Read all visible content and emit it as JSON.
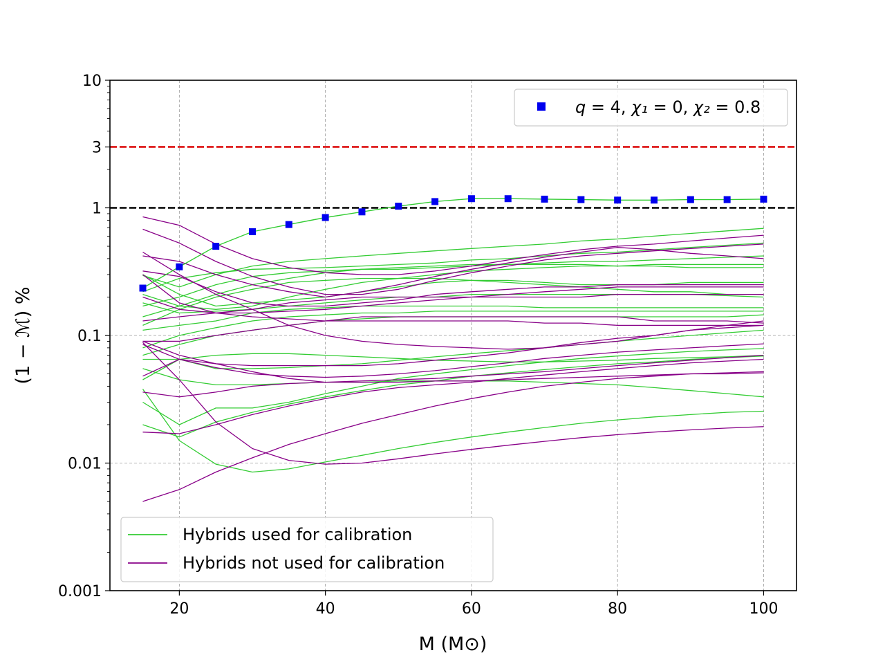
{
  "chart_data": {
    "type": "line",
    "title": "",
    "xlabel": "M (M⊙)",
    "ylabel": "(1 − ℳ) %",
    "xlim": [
      10.5,
      104.5
    ],
    "ylim": [
      0.001,
      10
    ],
    "yscale": "log",
    "grid": true,
    "x_ticks": [
      20,
      40,
      60,
      80,
      100
    ],
    "x_tick_labels": [
      "20",
      "40",
      "60",
      "80",
      "100"
    ],
    "y_ticks": [
      0.001,
      0.01,
      0.1,
      1,
      3,
      10
    ],
    "y_tick_labels": [
      "0.001",
      "0.01",
      "0.1",
      "1",
      "3",
      "10"
    ],
    "x": [
      15,
      20,
      25,
      30,
      35,
      40,
      45,
      50,
      55,
      60,
      65,
      70,
      75,
      80,
      85,
      90,
      95,
      100
    ],
    "reference_lines": [
      {
        "name": "3% threshold",
        "y": 3,
        "color": "#dd1111",
        "style": "dashed"
      },
      {
        "name": "1% threshold",
        "y": 1,
        "color": "#000000",
        "style": "dashed"
      }
    ],
    "highlight": {
      "name": "q = 4, χ₁ = 0, χ₂ = 0.8",
      "label_parts": {
        "q": "q",
        "q_val": " = 4, ",
        "chi1": "χ₁",
        "chi1_val": " = 0, ",
        "chi2": "χ₂",
        "chi2_val": " = 0.8"
      },
      "marker_color": "#0000ee",
      "line_color": "#33cc33",
      "values": [
        0.235,
        0.345,
        0.5,
        0.65,
        0.74,
        0.84,
        0.93,
        1.03,
        1.12,
        1.18,
        1.18,
        1.17,
        1.16,
        1.15,
        1.15,
        1.16,
        1.16,
        1.17
      ]
    },
    "legend_upper": {
      "position": "top-right"
    },
    "legend_lower": {
      "position": "bottom-left",
      "entries": [
        {
          "label": "Hybrids used for calibration",
          "color": "#33cc33"
        },
        {
          "label": "Hybrids not used for calibration",
          "color": "#880088"
        }
      ]
    },
    "series": [
      {
        "name": "calibration-1",
        "group": "calibration",
        "color": "#33cc33",
        "values": [
          0.295,
          0.24,
          0.3,
          0.35,
          0.38,
          0.4,
          0.42,
          0.44,
          0.46,
          0.48,
          0.5,
          0.52,
          0.55,
          0.57,
          0.6,
          0.63,
          0.66,
          0.69
        ]
      },
      {
        "name": "calibration-2",
        "group": "calibration",
        "color": "#33cc33",
        "values": [
          0.22,
          0.28,
          0.31,
          0.33,
          0.335,
          0.34,
          0.35,
          0.36,
          0.37,
          0.39,
          0.4,
          0.42,
          0.44,
          0.45,
          0.47,
          0.49,
          0.51,
          0.53
        ]
      },
      {
        "name": "calibration-3",
        "group": "calibration",
        "color": "#33cc33",
        "values": [
          0.17,
          0.2,
          0.25,
          0.29,
          0.31,
          0.32,
          0.33,
          0.33,
          0.34,
          0.35,
          0.36,
          0.37,
          0.38,
          0.38,
          0.39,
          0.4,
          0.41,
          0.42
        ]
      },
      {
        "name": "calibration-4",
        "group": "calibration",
        "color": "#33cc33",
        "values": [
          0.14,
          0.17,
          0.21,
          0.25,
          0.28,
          0.31,
          0.33,
          0.34,
          0.35,
          0.36,
          0.36,
          0.36,
          0.36,
          0.35,
          0.35,
          0.34,
          0.34,
          0.34
        ]
      },
      {
        "name": "calibration-5",
        "group": "calibration",
        "color": "#33cc33",
        "values": [
          0.21,
          0.17,
          0.16,
          0.17,
          0.2,
          0.23,
          0.26,
          0.28,
          0.3,
          0.32,
          0.33,
          0.34,
          0.35,
          0.35,
          0.36,
          0.36,
          0.36,
          0.36
        ]
      },
      {
        "name": "calibration-6",
        "group": "calibration",
        "color": "#33cc33",
        "values": [
          0.3,
          0.21,
          0.17,
          0.18,
          0.19,
          0.2,
          0.22,
          0.24,
          0.26,
          0.27,
          0.27,
          0.26,
          0.25,
          0.25,
          0.25,
          0.26,
          0.26,
          0.26
        ]
      },
      {
        "name": "calibration-7",
        "group": "calibration",
        "color": "#33cc33",
        "values": [
          0.18,
          0.15,
          0.155,
          0.16,
          0.17,
          0.18,
          0.19,
          0.2,
          0.2,
          0.21,
          0.21,
          0.21,
          0.21,
          0.21,
          0.21,
          0.21,
          0.205,
          0.2
        ]
      },
      {
        "name": "calibration-8",
        "group": "calibration",
        "color": "#33cc33",
        "values": [
          0.11,
          0.12,
          0.13,
          0.15,
          0.16,
          0.165,
          0.17,
          0.17,
          0.17,
          0.17,
          0.17,
          0.165,
          0.165,
          0.165,
          0.165,
          0.165,
          0.165,
          0.165
        ]
      },
      {
        "name": "calibration-9",
        "group": "calibration",
        "color": "#33cc33",
        "values": [
          0.08,
          0.1,
          0.115,
          0.13,
          0.14,
          0.145,
          0.15,
          0.15,
          0.155,
          0.155,
          0.155,
          0.155,
          0.155,
          0.155,
          0.155,
          0.155,
          0.155,
          0.155
        ]
      },
      {
        "name": "calibration-10",
        "group": "calibration",
        "color": "#33cc33",
        "values": [
          0.07,
          0.085,
          0.1,
          0.11,
          0.12,
          0.13,
          0.135,
          0.14,
          0.14,
          0.14,
          0.14,
          0.14,
          0.14,
          0.14,
          0.14,
          0.14,
          0.14,
          0.145
        ]
      },
      {
        "name": "calibration-11",
        "group": "calibration",
        "color": "#33cc33",
        "values": [
          0.065,
          0.065,
          0.055,
          0.055,
          0.056,
          0.058,
          0.06,
          0.064,
          0.068,
          0.072,
          0.076,
          0.08,
          0.085,
          0.09,
          0.095,
          0.1,
          0.105,
          0.11
        ]
      },
      {
        "name": "calibration-12",
        "group": "calibration",
        "color": "#33cc33",
        "values": [
          0.055,
          0.045,
          0.041,
          0.041,
          0.042,
          0.043,
          0.043,
          0.044,
          0.044,
          0.044,
          0.044,
          0.043,
          0.042,
          0.041,
          0.039,
          0.037,
          0.035,
          0.033
        ]
      },
      {
        "name": "calibration-13",
        "group": "calibration",
        "color": "#33cc33",
        "values": [
          0.045,
          0.065,
          0.07,
          0.072,
          0.072,
          0.07,
          0.068,
          0.066,
          0.064,
          0.063,
          0.062,
          0.062,
          0.063,
          0.064,
          0.066,
          0.067,
          0.068,
          0.07
        ]
      },
      {
        "name": "calibration-14",
        "group": "calibration",
        "color": "#33cc33",
        "values": [
          0.03,
          0.02,
          0.027,
          0.027,
          0.03,
          0.035,
          0.04,
          0.046,
          0.05,
          0.054,
          0.058,
          0.062,
          0.066,
          0.069,
          0.072,
          0.075,
          0.077,
          0.079
        ]
      },
      {
        "name": "calibration-15",
        "group": "calibration",
        "color": "#33cc33",
        "values": [
          0.02,
          0.016,
          0.021,
          0.025,
          0.029,
          0.033,
          0.037,
          0.041,
          0.044,
          0.048,
          0.051,
          0.054,
          0.057,
          0.06,
          0.062,
          0.065,
          0.067,
          0.069
        ]
      },
      {
        "name": "calibration-16",
        "group": "calibration",
        "color": "#33cc33",
        "values": [
          0.038,
          0.015,
          0.0098,
          0.0085,
          0.009,
          0.0102,
          0.0115,
          0.013,
          0.0145,
          0.016,
          0.0175,
          0.019,
          0.0205,
          0.0218,
          0.023,
          0.024,
          0.025,
          0.0255
        ]
      },
      {
        "name": "calibration-17",
        "group": "calibration",
        "color": "#33cc33",
        "values": [
          0.12,
          0.16,
          0.2,
          0.23,
          0.26,
          0.27,
          0.28,
          0.28,
          0.28,
          0.27,
          0.26,
          0.25,
          0.24,
          0.23,
          0.22,
          0.22,
          0.21,
          0.21
        ]
      },
      {
        "name": "non-calibration-1",
        "group": "non-calibration",
        "color": "#880088",
        "values": [
          0.85,
          0.73,
          0.52,
          0.4,
          0.34,
          0.31,
          0.3,
          0.3,
          0.32,
          0.35,
          0.39,
          0.43,
          0.47,
          0.5,
          0.52,
          0.55,
          0.58,
          0.61
        ]
      },
      {
        "name": "non-calibration-2",
        "group": "non-calibration",
        "color": "#880088",
        "values": [
          0.68,
          0.53,
          0.38,
          0.29,
          0.24,
          0.21,
          0.21,
          0.23,
          0.27,
          0.31,
          0.35,
          0.39,
          0.42,
          0.44,
          0.46,
          0.48,
          0.5,
          0.52
        ]
      },
      {
        "name": "non-calibration-3",
        "group": "non-calibration",
        "color": "#880088",
        "values": [
          0.42,
          0.38,
          0.3,
          0.25,
          0.22,
          0.2,
          0.22,
          0.25,
          0.29,
          0.33,
          0.37,
          0.41,
          0.45,
          0.49,
          0.47,
          0.44,
          0.42,
          0.4
        ]
      },
      {
        "name": "non-calibration-4",
        "group": "non-calibration",
        "color": "#880088",
        "values": [
          0.45,
          0.3,
          0.21,
          0.16,
          0.12,
          0.1,
          0.09,
          0.085,
          0.082,
          0.08,
          0.078,
          0.08,
          0.085,
          0.09,
          0.1,
          0.11,
          0.12,
          0.13
        ]
      },
      {
        "name": "non-calibration-5",
        "group": "non-calibration",
        "color": "#880088",
        "values": [
          0.32,
          0.29,
          0.22,
          0.18,
          0.17,
          0.17,
          0.18,
          0.19,
          0.21,
          0.22,
          0.23,
          0.24,
          0.24,
          0.25,
          0.25,
          0.25,
          0.25,
          0.25
        ]
      },
      {
        "name": "non-calibration-6",
        "group": "non-calibration",
        "color": "#880088",
        "values": [
          0.13,
          0.14,
          0.15,
          0.16,
          0.18,
          0.19,
          0.2,
          0.2,
          0.2,
          0.2,
          0.2,
          0.2,
          0.2,
          0.21,
          0.21,
          0.21,
          0.21,
          0.21
        ]
      },
      {
        "name": "non-calibration-7",
        "group": "non-calibration",
        "color": "#880088",
        "values": [
          0.2,
          0.16,
          0.15,
          0.15,
          0.155,
          0.16,
          0.17,
          0.18,
          0.19,
          0.2,
          0.21,
          0.22,
          0.23,
          0.24,
          0.24,
          0.24,
          0.24,
          0.24
        ]
      },
      {
        "name": "non-calibration-8",
        "group": "non-calibration",
        "color": "#880088",
        "values": [
          0.3,
          0.18,
          0.15,
          0.14,
          0.135,
          0.13,
          0.13,
          0.13,
          0.13,
          0.13,
          0.13,
          0.125,
          0.125,
          0.12,
          0.12,
          0.12,
          0.12,
          0.12
        ]
      },
      {
        "name": "non-calibration-9",
        "group": "non-calibration",
        "color": "#880088",
        "values": [
          0.09,
          0.09,
          0.1,
          0.11,
          0.12,
          0.13,
          0.14,
          0.14,
          0.14,
          0.14,
          0.14,
          0.14,
          0.14,
          0.14,
          0.13,
          0.13,
          0.13,
          0.125
        ]
      },
      {
        "name": "non-calibration-10",
        "group": "non-calibration",
        "color": "#880088",
        "values": [
          0.09,
          0.07,
          0.06,
          0.058,
          0.058,
          0.058,
          0.058,
          0.06,
          0.064,
          0.068,
          0.073,
          0.08,
          0.088,
          0.095,
          0.1,
          0.11,
          0.115,
          0.12
        ]
      },
      {
        "name": "non-calibration-11",
        "group": "non-calibration",
        "color": "#880088",
        "values": [
          0.085,
          0.065,
          0.056,
          0.05,
          0.048,
          0.047,
          0.048,
          0.05,
          0.053,
          0.057,
          0.061,
          0.066,
          0.07,
          0.074,
          0.077,
          0.08,
          0.083,
          0.086
        ]
      },
      {
        "name": "non-calibration-12",
        "group": "non-calibration",
        "color": "#880088",
        "values": [
          0.048,
          0.065,
          0.06,
          0.052,
          0.046,
          0.043,
          0.043,
          0.043,
          0.044,
          0.044,
          0.045,
          0.046,
          0.047,
          0.048,
          0.049,
          0.05,
          0.05,
          0.051
        ]
      },
      {
        "name": "non-calibration-13",
        "group": "non-calibration",
        "color": "#880088",
        "values": [
          0.036,
          0.033,
          0.036,
          0.04,
          0.042,
          0.043,
          0.044,
          0.045,
          0.046,
          0.048,
          0.05,
          0.052,
          0.055,
          0.058,
          0.061,
          0.064,
          0.067,
          0.07
        ]
      },
      {
        "name": "non-calibration-14",
        "group": "non-calibration",
        "color": "#880088",
        "values": [
          0.0175,
          0.017,
          0.02,
          0.024,
          0.028,
          0.032,
          0.036,
          0.039,
          0.041,
          0.043,
          0.046,
          0.049,
          0.052,
          0.055,
          0.058,
          0.061,
          0.063,
          0.065
        ]
      },
      {
        "name": "non-calibration-15",
        "group": "non-calibration",
        "color": "#880088",
        "values": [
          0.005,
          0.0062,
          0.0085,
          0.011,
          0.014,
          0.017,
          0.0205,
          0.024,
          0.028,
          0.032,
          0.036,
          0.04,
          0.043,
          0.046,
          0.048,
          0.05,
          0.051,
          0.052
        ]
      },
      {
        "name": "non-calibration-16",
        "group": "non-calibration",
        "color": "#880088",
        "values": [
          0.088,
          0.045,
          0.021,
          0.013,
          0.0105,
          0.0098,
          0.01,
          0.0108,
          0.0118,
          0.0128,
          0.0138,
          0.0148,
          0.0158,
          0.0167,
          0.0175,
          0.0182,
          0.0188,
          0.0193
        ]
      }
    ]
  }
}
